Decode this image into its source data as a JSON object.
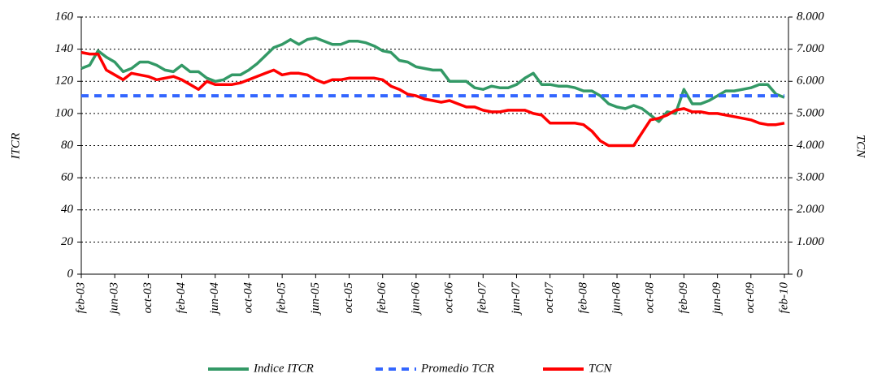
{
  "chart_data": {
    "type": "line",
    "categories": [
      "feb-03",
      null,
      null,
      null,
      "jun-03",
      null,
      null,
      null,
      "oct-03",
      null,
      null,
      null,
      "feb-04",
      null,
      null,
      null,
      "jun-04",
      null,
      null,
      null,
      "oct-04",
      null,
      null,
      null,
      "feb-05",
      null,
      null,
      null,
      "jun-05",
      null,
      null,
      null,
      "oct-05",
      null,
      null,
      null,
      "feb-06",
      null,
      null,
      null,
      "jun-06",
      null,
      null,
      null,
      "oct-06",
      null,
      null,
      null,
      "feb-07",
      null,
      null,
      null,
      "jun-07",
      null,
      null,
      null,
      "oct-07",
      null,
      null,
      null,
      "feb-08",
      null,
      null,
      null,
      "jun-08",
      null,
      null,
      null,
      "oct-08",
      null,
      null,
      null,
      "feb-09",
      null,
      null,
      null,
      "jun-09",
      null,
      null,
      null,
      "oct-09",
      null,
      null,
      null,
      "feb-10"
    ],
    "ylabel": "ITCR",
    "y2label": "TCN",
    "ylim": [
      0,
      160
    ],
    "yticks": [
      0,
      20,
      40,
      60,
      80,
      100,
      120,
      140,
      160
    ],
    "y2lim": [
      0,
      8000
    ],
    "y2ticks": [
      0,
      {
        "value": 1000,
        "label": "1.000"
      },
      {
        "value": 2000,
        "label": "2.000"
      },
      {
        "value": 3000,
        "label": "3.000"
      },
      {
        "value": 4000,
        "label": "4.000"
      },
      {
        "value": 5000,
        "label": "5.000"
      },
      {
        "value": 6000,
        "label": "6.000"
      },
      {
        "value": 7000,
        "label": "7.000"
      },
      {
        "value": 8000,
        "label": "8.000"
      }
    ],
    "grid": true,
    "legend": "bottom",
    "series": [
      {
        "name": "Indice ITCR",
        "color": "#339966",
        "dash": false,
        "values": [
          128,
          130,
          139,
          135,
          132,
          126,
          128,
          132,
          132,
          130,
          127,
          126,
          130,
          126,
          126,
          122,
          120,
          121,
          124,
          124,
          127,
          131,
          136,
          141,
          143,
          146,
          143,
          146,
          147,
          145,
          143,
          143,
          145,
          145,
          144,
          142,
          139,
          138,
          133,
          132,
          129,
          128,
          127,
          127,
          120,
          120,
          120,
          116,
          115,
          117,
          116,
          116,
          118,
          122,
          125,
          118,
          118,
          117,
          117,
          116,
          114,
          114,
          111,
          106,
          104,
          103,
          105,
          103,
          99,
          95,
          101,
          100,
          115,
          106,
          106,
          108,
          111,
          114,
          114,
          115,
          116,
          118,
          118,
          112,
          110
        ]
      },
      {
        "name": "Promedio TCR",
        "color": "#3366ff",
        "dash": true,
        "values": [
          111,
          111,
          111,
          111,
          111,
          111,
          111,
          111,
          111,
          111,
          111,
          111,
          111,
          111,
          111,
          111,
          111,
          111,
          111,
          111,
          111,
          111,
          111,
          111,
          111,
          111,
          111,
          111,
          111,
          111,
          111,
          111,
          111,
          111,
          111,
          111,
          111,
          111,
          111,
          111,
          111,
          111,
          111,
          111,
          111,
          111,
          111,
          111,
          111,
          111,
          111,
          111,
          111,
          111,
          111,
          111,
          111,
          111,
          111,
          111,
          111,
          111,
          111,
          111,
          111,
          111,
          111,
          111,
          111,
          111,
          111,
          111,
          111,
          111,
          111,
          111,
          111,
          111,
          111,
          111,
          111,
          111,
          111,
          111,
          111
        ]
      },
      {
        "name": "TCN",
        "color": "#ff0000",
        "dash": false,
        "axis": "y2",
        "values": [
          6900,
          6850,
          6850,
          6350,
          6200,
          6050,
          6250,
          6200,
          6150,
          6050,
          6100,
          6150,
          6050,
          5900,
          5750,
          6000,
          5900,
          5900,
          5900,
          5950,
          6050,
          6150,
          6250,
          6350,
          6200,
          6250,
          6250,
          6200,
          6050,
          5950,
          6050,
          6050,
          6100,
          6100,
          6100,
          6100,
          6050,
          5850,
          5750,
          5600,
          5550,
          5450,
          5400,
          5350,
          5400,
          5300,
          5200,
          5200,
          5100,
          5050,
          5050,
          5100,
          5100,
          5100,
          5000,
          4950,
          4700,
          4700,
          4700,
          4700,
          4650,
          4450,
          4150,
          4000,
          4000,
          4000,
          4000,
          4400,
          4800,
          4850,
          4950,
          5100,
          5150,
          5050,
          5050,
          5000,
          5000,
          4950,
          4900,
          4850,
          4800,
          4700,
          4650,
          4650,
          4700
        ]
      }
    ]
  }
}
